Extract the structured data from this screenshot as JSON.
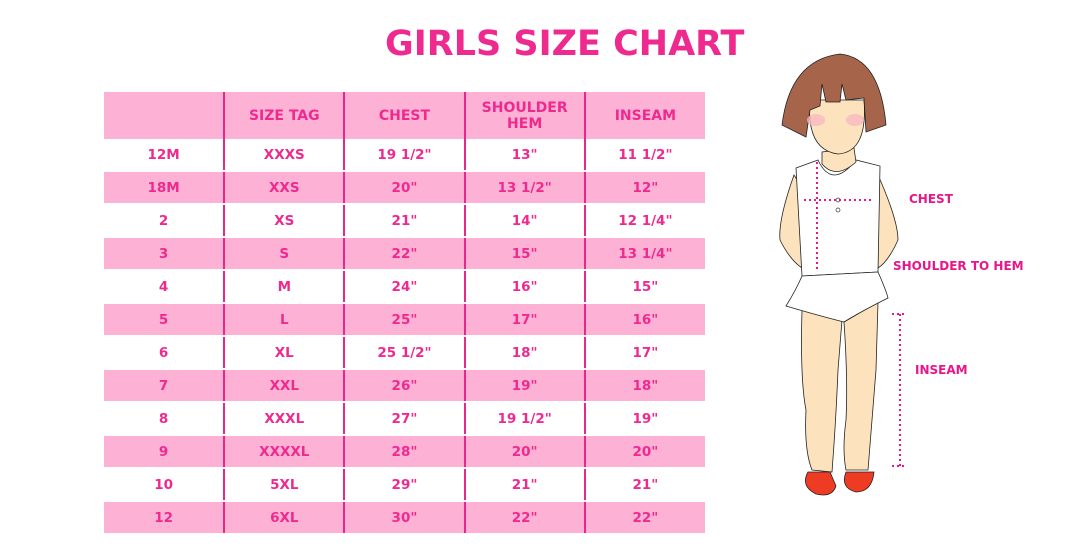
{
  "title": "GIRLS SIZE CHART",
  "table": {
    "headers": [
      "",
      "SIZE TAG",
      "CHEST",
      "SHOULDER HEM",
      "INSEAM"
    ],
    "rows": [
      [
        "12M",
        "XXXS",
        "19 1/2\"",
        "13\"",
        "11 1/2\""
      ],
      [
        "18M",
        "XXS",
        "20\"",
        "13 1/2\"",
        "12\""
      ],
      [
        "2",
        "XS",
        "21\"",
        "14\"",
        "12 1/4\""
      ],
      [
        "3",
        "S",
        "22\"",
        "15\"",
        "13 1/4\""
      ],
      [
        "4",
        "M",
        "24\"",
        "16\"",
        "15\""
      ],
      [
        "5",
        "L",
        "25\"",
        "17\"",
        "16\""
      ],
      [
        "6",
        "XL",
        "25 1/2\"",
        "18\"",
        "17\""
      ],
      [
        "7",
        "XXL",
        "26\"",
        "19\"",
        "18\""
      ],
      [
        "8",
        "XXXL",
        "27\"",
        "19 1/2\"",
        "19\""
      ],
      [
        "9",
        "XXXXL",
        "28\"",
        "20\"",
        "20\""
      ],
      [
        "10",
        "5XL",
        "29\"",
        "21\"",
        "21\""
      ],
      [
        "12",
        "6XL",
        "30\"",
        "22\"",
        "22\""
      ]
    ]
  },
  "figure": {
    "labels": {
      "chest": "CHEST",
      "shoulder": "SHOULDER TO HEM",
      "inseam": "INSEAM"
    }
  },
  "colors": {
    "accent": "#ee2a8f",
    "band": "#fdb1d5"
  }
}
